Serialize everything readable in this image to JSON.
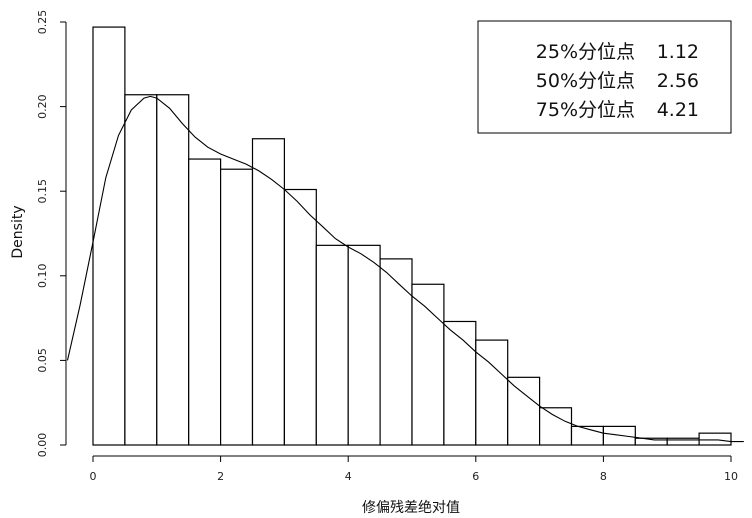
{
  "chart_data": {
    "type": "bar",
    "subtype": "histogram-with-density",
    "title": "",
    "xlabel": "修偏残差绝对值",
    "ylabel": "Density",
    "xlim": [
      0,
      10
    ],
    "ylim": [
      0,
      0.25
    ],
    "x_ticks": [
      0,
      2,
      4,
      6,
      8,
      10
    ],
    "x_tick_labels": [
      "0",
      "2",
      "4",
      "6",
      "8",
      "10"
    ],
    "y_ticks": [
      0,
      0.05,
      0.1,
      0.15,
      0.2,
      0.25
    ],
    "y_tick_labels": [
      "0.00",
      "0.05",
      "0.10",
      "0.15",
      "0.20",
      "0.25"
    ],
    "bins": [
      {
        "x0": 0.0,
        "x1": 0.5,
        "density": 0.247
      },
      {
        "x0": 0.5,
        "x1": 1.0,
        "density": 0.207
      },
      {
        "x0": 1.0,
        "x1": 1.5,
        "density": 0.207
      },
      {
        "x0": 1.5,
        "x1": 2.0,
        "density": 0.169
      },
      {
        "x0": 2.0,
        "x1": 2.5,
        "density": 0.163
      },
      {
        "x0": 2.5,
        "x1": 3.0,
        "density": 0.181
      },
      {
        "x0": 3.0,
        "x1": 3.5,
        "density": 0.151
      },
      {
        "x0": 3.5,
        "x1": 4.0,
        "density": 0.118
      },
      {
        "x0": 4.0,
        "x1": 4.5,
        "density": 0.118
      },
      {
        "x0": 4.5,
        "x1": 5.0,
        "density": 0.11
      },
      {
        "x0": 5.0,
        "x1": 5.5,
        "density": 0.095
      },
      {
        "x0": 5.5,
        "x1": 6.0,
        "density": 0.073
      },
      {
        "x0": 6.0,
        "x1": 6.5,
        "density": 0.062
      },
      {
        "x0": 6.5,
        "x1": 7.0,
        "density": 0.04
      },
      {
        "x0": 7.0,
        "x1": 7.5,
        "density": 0.022
      },
      {
        "x0": 7.5,
        "x1": 8.0,
        "density": 0.011
      },
      {
        "x0": 8.0,
        "x1": 8.5,
        "density": 0.011
      },
      {
        "x0": 8.5,
        "x1": 9.0,
        "density": 0.004
      },
      {
        "x0": 9.0,
        "x1": 9.5,
        "density": 0.004
      },
      {
        "x0": 9.5,
        "x1": 10.0,
        "density": 0.007
      }
    ],
    "density_curve": {
      "x": [
        -0.4,
        -0.2,
        0.0,
        0.2,
        0.4,
        0.6,
        0.8,
        0.9,
        1.0,
        1.2,
        1.4,
        1.6,
        1.8,
        2.0,
        2.2,
        2.4,
        2.6,
        2.8,
        3.0,
        3.2,
        3.4,
        3.6,
        3.8,
        4.0,
        4.2,
        4.4,
        4.6,
        4.8,
        5.0,
        5.2,
        5.4,
        5.6,
        5.8,
        6.0,
        6.2,
        6.4,
        6.6,
        6.8,
        7.0,
        7.2,
        7.4,
        7.6,
        7.8,
        8.0,
        8.2,
        8.4,
        8.6,
        8.8,
        9.0,
        9.2,
        9.4,
        9.6,
        9.8,
        10.0,
        10.2
      ],
      "y": [
        0.05,
        0.083,
        0.12,
        0.158,
        0.183,
        0.198,
        0.205,
        0.206,
        0.205,
        0.199,
        0.19,
        0.182,
        0.176,
        0.172,
        0.169,
        0.166,
        0.162,
        0.157,
        0.151,
        0.144,
        0.136,
        0.129,
        0.122,
        0.117,
        0.113,
        0.108,
        0.102,
        0.095,
        0.088,
        0.082,
        0.075,
        0.068,
        0.062,
        0.055,
        0.049,
        0.042,
        0.035,
        0.029,
        0.023,
        0.018,
        0.014,
        0.011,
        0.009,
        0.007,
        0.006,
        0.005,
        0.004,
        0.003,
        0.003,
        0.003,
        0.003,
        0.003,
        0.003,
        0.002,
        0.002
      ]
    },
    "legend": {
      "placement": "top-right",
      "rows": [
        {
          "label": "25%分位点",
          "value": "1.12"
        },
        {
          "label": "50%分位点",
          "value": "2.56"
        },
        {
          "label": "75%分位点",
          "value": "4.21"
        }
      ]
    },
    "grid": false
  }
}
